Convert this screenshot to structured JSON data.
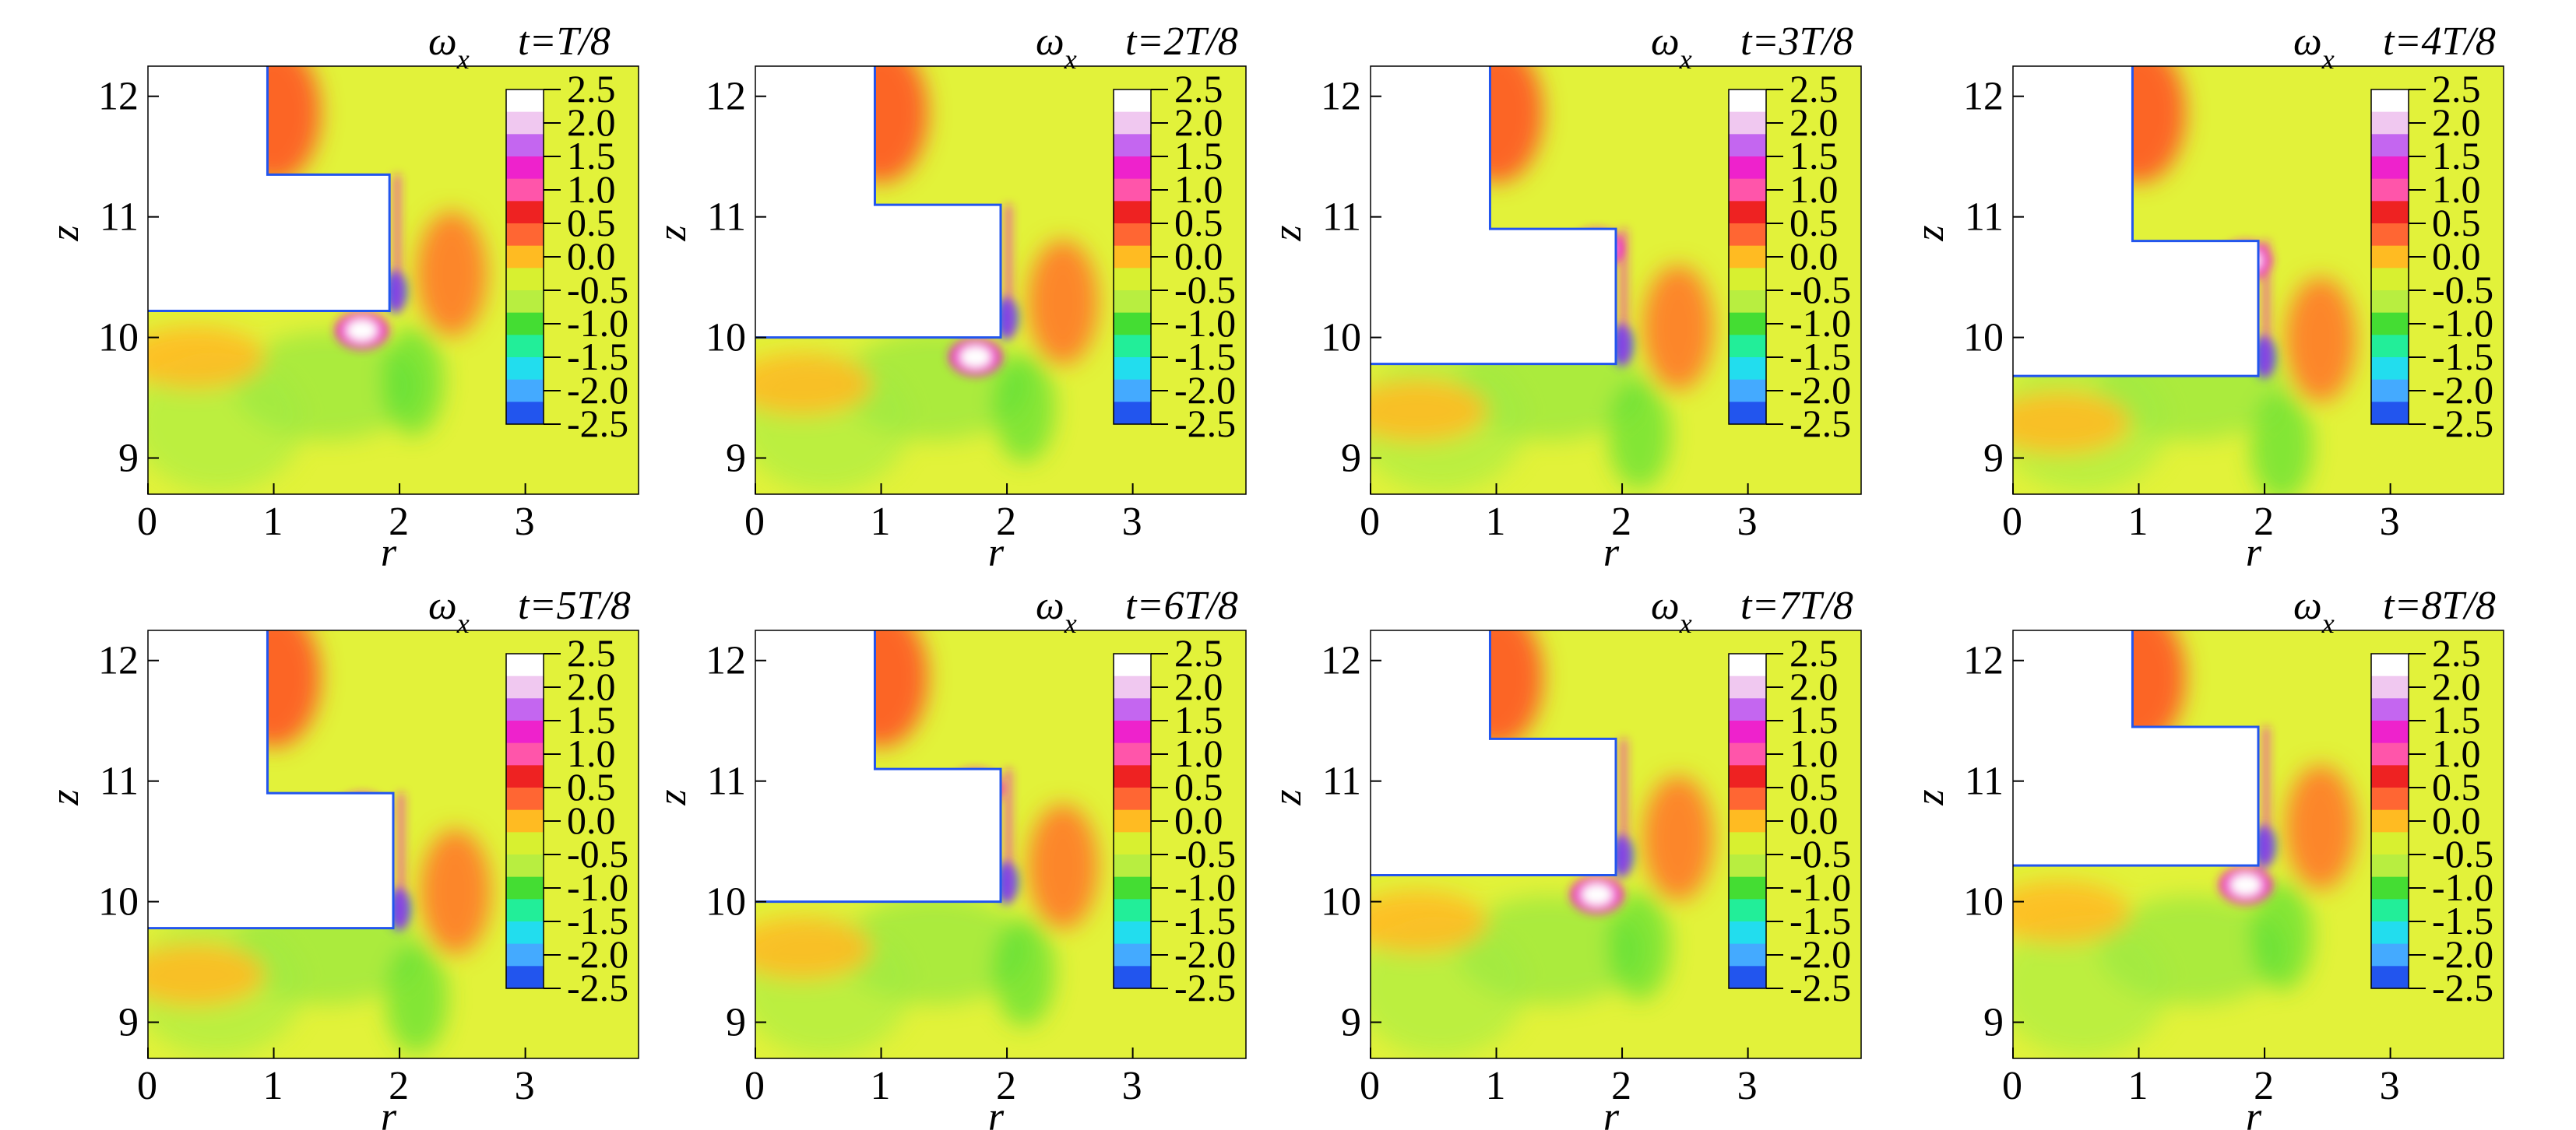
{
  "chart_data": {
    "type": "heatmap",
    "variable_symbol": "ω",
    "variable_subscript": "x",
    "xlabel": "r",
    "ylabel": "z",
    "xlim": [
      0,
      3.9
    ],
    "ylim": [
      8.7,
      12.25
    ],
    "xticks": [
      "0",
      "1",
      "2",
      "3"
    ],
    "yticks": [
      "9",
      "10",
      "11",
      "12"
    ],
    "colorbar": {
      "labels": [
        "2.5",
        "2.0",
        "1.5",
        "1.0",
        "0.5",
        "0.0",
        "-0.5",
        "-1.0",
        "-1.5",
        "-2.0",
        "-2.5"
      ],
      "colors": [
        "#ffffff",
        "#f0c8f0",
        "#c466f0",
        "#ee22cc",
        "#ff55aa",
        "#ee2222",
        "#ff6633",
        "#ffbb22",
        "#d8f030",
        "#b8ee40",
        "#44dd33",
        "#22ee99",
        "#22ddee",
        "#44aaff",
        "#2255ee"
      ]
    },
    "background_color": "#e2f23a",
    "panels": [
      {
        "time": "t=T/8",
        "step_z": 10.22,
        "top_z": 11.35,
        "wall_r": 1.92
      },
      {
        "time": "t=2T/8",
        "step_z": 10.0,
        "top_z": 11.1,
        "wall_r": 1.95
      },
      {
        "time": "t=3T/8",
        "step_z": 9.78,
        "top_z": 10.9,
        "wall_r": 1.95
      },
      {
        "time": "t=4T/8",
        "step_z": 9.68,
        "top_z": 10.8,
        "wall_r": 1.95
      },
      {
        "time": "t=5T/8",
        "step_z": 9.78,
        "top_z": 10.9,
        "wall_r": 1.95
      },
      {
        "time": "t=6T/8",
        "step_z": 10.0,
        "top_z": 11.1,
        "wall_r": 1.95
      },
      {
        "time": "t=7T/8",
        "step_z": 10.22,
        "top_z": 11.35,
        "wall_r": 1.95
      },
      {
        "time": "t=8T/8",
        "step_z": 10.3,
        "top_z": 11.45,
        "wall_r": 1.95
      }
    ]
  }
}
